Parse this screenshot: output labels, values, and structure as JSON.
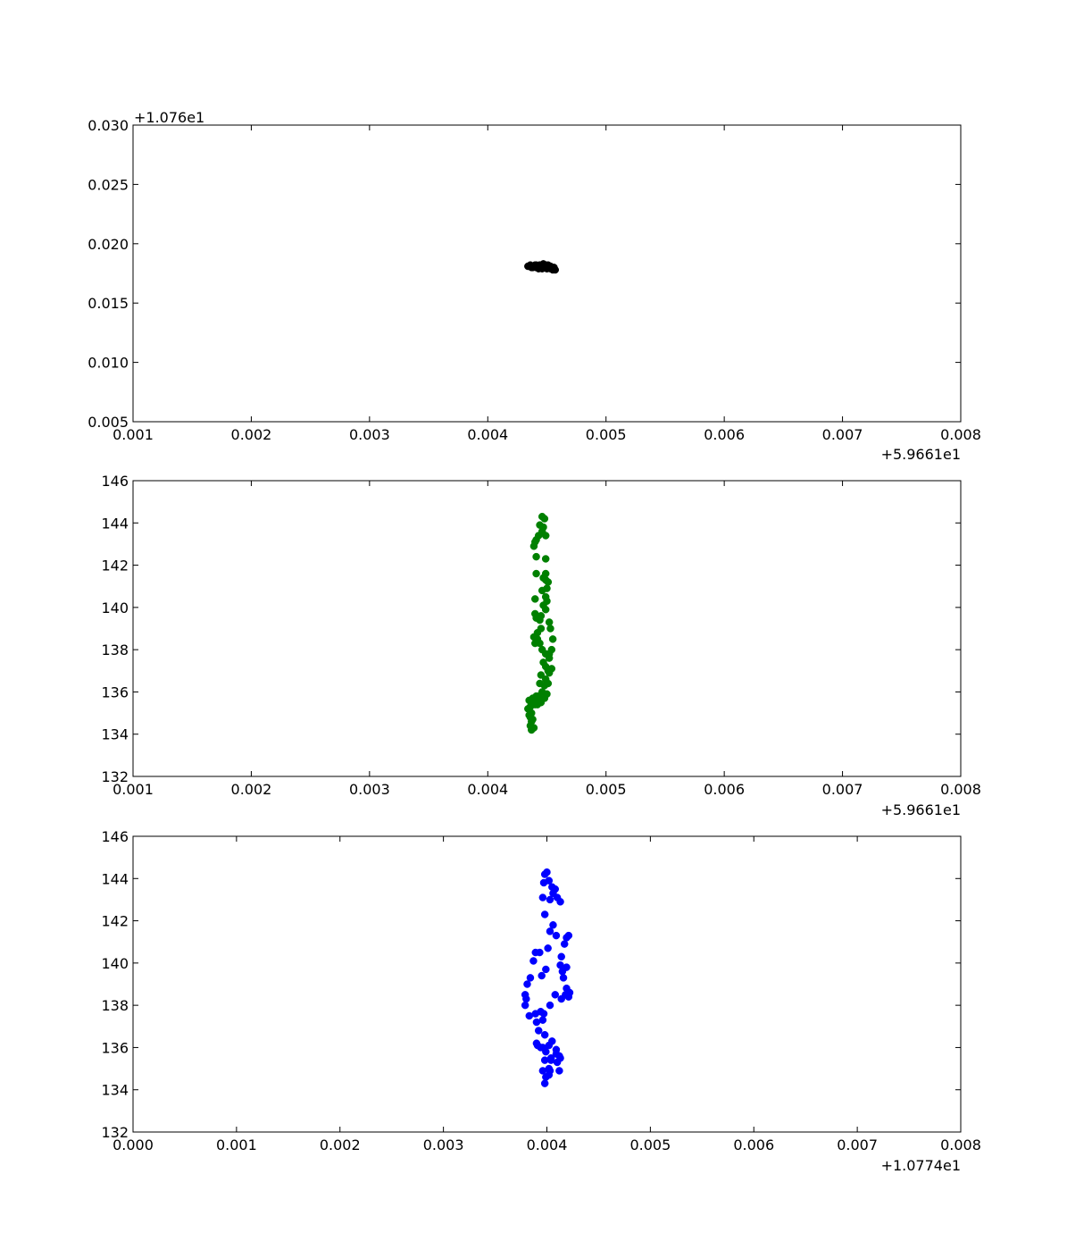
{
  "chart_data": [
    {
      "type": "scatter",
      "marker_color": "#000000",
      "x_offset_label": "+5.9661e1",
      "y_offset_label": "+1.076e1",
      "xlim": [
        0.001,
        0.008
      ],
      "ylim": [
        0.005,
        0.03
      ],
      "xticks": [
        "0.001",
        "0.002",
        "0.003",
        "0.004",
        "0.005",
        "0.006",
        "0.007",
        "0.008"
      ],
      "yticks": [
        "0.005",
        "0.010",
        "0.015",
        "0.020",
        "0.025",
        "0.030"
      ],
      "xtick_values": [
        0.001,
        0.002,
        0.003,
        0.004,
        0.005,
        0.006,
        0.007,
        0.008
      ],
      "ytick_values": [
        0.005,
        0.01,
        0.015,
        0.02,
        0.025,
        0.03
      ],
      "x": [
        0.00434,
        0.00436,
        0.00437,
        0.00439,
        0.0044,
        0.00441,
        0.00442,
        0.00443,
        0.00444,
        0.00445,
        0.00446,
        0.00447,
        0.00448,
        0.00449,
        0.0045,
        0.00451,
        0.00452,
        0.00453,
        0.00454,
        0.00455,
        0.00456,
        0.00457,
        0.00438,
        0.00444,
        0.00449,
        0.00453,
        0.00446,
        0.00441
      ],
      "y": [
        0.0181,
        0.0182,
        0.018,
        0.0181,
        0.0182,
        0.018,
        0.0181,
        0.0179,
        0.0182,
        0.018,
        0.0181,
        0.0183,
        0.018,
        0.0181,
        0.0179,
        0.0182,
        0.018,
        0.0181,
        0.0179,
        0.0178,
        0.018,
        0.0178,
        0.018,
        0.0182,
        0.0182,
        0.0179,
        0.0179,
        0.0182
      ]
    },
    {
      "type": "scatter",
      "marker_color": "#008000",
      "x_offset_label": "+5.9661e1",
      "y_offset_label": "",
      "xlim": [
        0.001,
        0.008
      ],
      "ylim": [
        132,
        146
      ],
      "xticks": [
        "0.001",
        "0.002",
        "0.003",
        "0.004",
        "0.005",
        "0.006",
        "0.007",
        "0.008"
      ],
      "yticks": [
        "132",
        "134",
        "136",
        "138",
        "140",
        "142",
        "144",
        "146"
      ],
      "xtick_values": [
        0.001,
        0.002,
        0.003,
        0.004,
        0.005,
        0.006,
        0.007,
        0.008
      ],
      "ytick_values": [
        132,
        134,
        136,
        138,
        140,
        142,
        144,
        146
      ],
      "x": [
        0.00446,
        0.00448,
        0.00444,
        0.00447,
        0.00446,
        0.00449,
        0.00443,
        0.00441,
        0.0044,
        0.00439,
        0.00441,
        0.00449,
        0.00441,
        0.00449,
        0.00447,
        0.00449,
        0.00451,
        0.0045,
        0.00446,
        0.00449,
        0.0044,
        0.0045,
        0.00447,
        0.00449,
        0.0044,
        0.00445,
        0.00444,
        0.00441,
        0.00445,
        0.00442,
        0.00439,
        0.00444,
        0.00452,
        0.00453,
        0.00455,
        0.00454,
        0.00452,
        0.0044,
        0.00442,
        0.00446,
        0.00449,
        0.00452,
        0.00447,
        0.00449,
        0.00451,
        0.00445,
        0.00449,
        0.00452,
        0.00454,
        0.00444,
        0.00448,
        0.00451,
        0.00446,
        0.0045,
        0.00443,
        0.00448,
        0.00441,
        0.00445,
        0.00442,
        0.00436,
        0.00438,
        0.00441,
        0.00435,
        0.0044,
        0.00434,
        0.00437,
        0.00436,
        0.00438,
        0.00435,
        0.00437,
        0.00436,
        0.00439,
        0.00437,
        0.00438
      ],
      "y": [
        144.3,
        144.2,
        143.9,
        143.8,
        143.6,
        143.4,
        143.4,
        143.2,
        143.1,
        142.9,
        142.4,
        142.3,
        141.6,
        141.6,
        141.4,
        141.3,
        141.2,
        140.9,
        140.8,
        140.5,
        140.4,
        140.3,
        140.1,
        139.9,
        139.7,
        139.6,
        139.4,
        139.5,
        139.0,
        138.8,
        138.6,
        138.3,
        139.3,
        139.0,
        138.5,
        138.0,
        137.8,
        138.3,
        138.5,
        138.0,
        137.8,
        137.6,
        137.4,
        137.2,
        137.0,
        136.8,
        136.6,
        136.9,
        137.1,
        136.4,
        136.3,
        136.4,
        136.0,
        135.9,
        135.8,
        135.7,
        135.6,
        135.5,
        135.4,
        135.3,
        135.7,
        135.8,
        135.6,
        135.4,
        135.2,
        135.0,
        134.8,
        134.7,
        134.9,
        134.6,
        134.4,
        134.3,
        134.2,
        135.5
      ]
    },
    {
      "type": "scatter",
      "marker_color": "#0000ff",
      "x_offset_label": "+1.0774e1",
      "y_offset_label": "",
      "xlim": [
        0.0,
        0.008
      ],
      "ylim": [
        132,
        146
      ],
      "xticks": [
        "0.000",
        "0.001",
        "0.002",
        "0.003",
        "0.004",
        "0.005",
        "0.006",
        "0.007",
        "0.008"
      ],
      "yticks": [
        "132",
        "134",
        "136",
        "138",
        "140",
        "142",
        "144",
        "146"
      ],
      "xtick_values": [
        0.0,
        0.001,
        0.002,
        0.003,
        0.004,
        0.005,
        0.006,
        0.007,
        0.008
      ],
      "ytick_values": [
        132,
        134,
        136,
        138,
        140,
        142,
        144,
        146
      ],
      "x": [
        0.004,
        0.00398,
        0.00402,
        0.00397,
        0.00405,
        0.00408,
        0.00406,
        0.0041,
        0.00403,
        0.00396,
        0.00413,
        0.00398,
        0.00406,
        0.00403,
        0.00409,
        0.00419,
        0.00421,
        0.00401,
        0.00417,
        0.00414,
        0.00393,
        0.00389,
        0.00387,
        0.00399,
        0.00419,
        0.00413,
        0.00415,
        0.00416,
        0.00419,
        0.00395,
        0.00384,
        0.00381,
        0.00379,
        0.00421,
        0.00418,
        0.00422,
        0.00414,
        0.00408,
        0.00379,
        0.0038,
        0.00389,
        0.00394,
        0.0039,
        0.00396,
        0.00392,
        0.0039,
        0.00398,
        0.00394,
        0.00391,
        0.00396,
        0.00402,
        0.00399,
        0.00405,
        0.00409,
        0.00404,
        0.00412,
        0.00413,
        0.0041,
        0.00398,
        0.00402,
        0.00396,
        0.00403,
        0.00399,
        0.00412,
        0.00402,
        0.00398,
        0.00404,
        0.00397,
        0.00403,
        0.0042,
        0.00383,
        0.00409
      ],
      "y": [
        144.3,
        144.2,
        143.9,
        143.8,
        143.6,
        143.5,
        143.3,
        143.1,
        143.0,
        143.1,
        142.9,
        142.3,
        141.8,
        141.5,
        141.3,
        141.2,
        141.3,
        140.7,
        140.9,
        140.3,
        140.5,
        140.5,
        140.1,
        139.7,
        139.8,
        139.9,
        139.6,
        139.3,
        138.8,
        139.4,
        139.3,
        139.0,
        138.5,
        138.4,
        138.5,
        138.6,
        138.3,
        138.5,
        138.0,
        138.3,
        137.6,
        137.7,
        137.2,
        137.3,
        136.8,
        136.2,
        136.6,
        136.0,
        136.1,
        136.0,
        136.1,
        135.8,
        136.3,
        135.7,
        135.5,
        135.6,
        135.5,
        135.3,
        135.4,
        135.0,
        134.9,
        134.9,
        134.6,
        134.9,
        134.7,
        134.3,
        135.4,
        137.6,
        138.0,
        138.5,
        137.5,
        135.9
      ]
    }
  ]
}
